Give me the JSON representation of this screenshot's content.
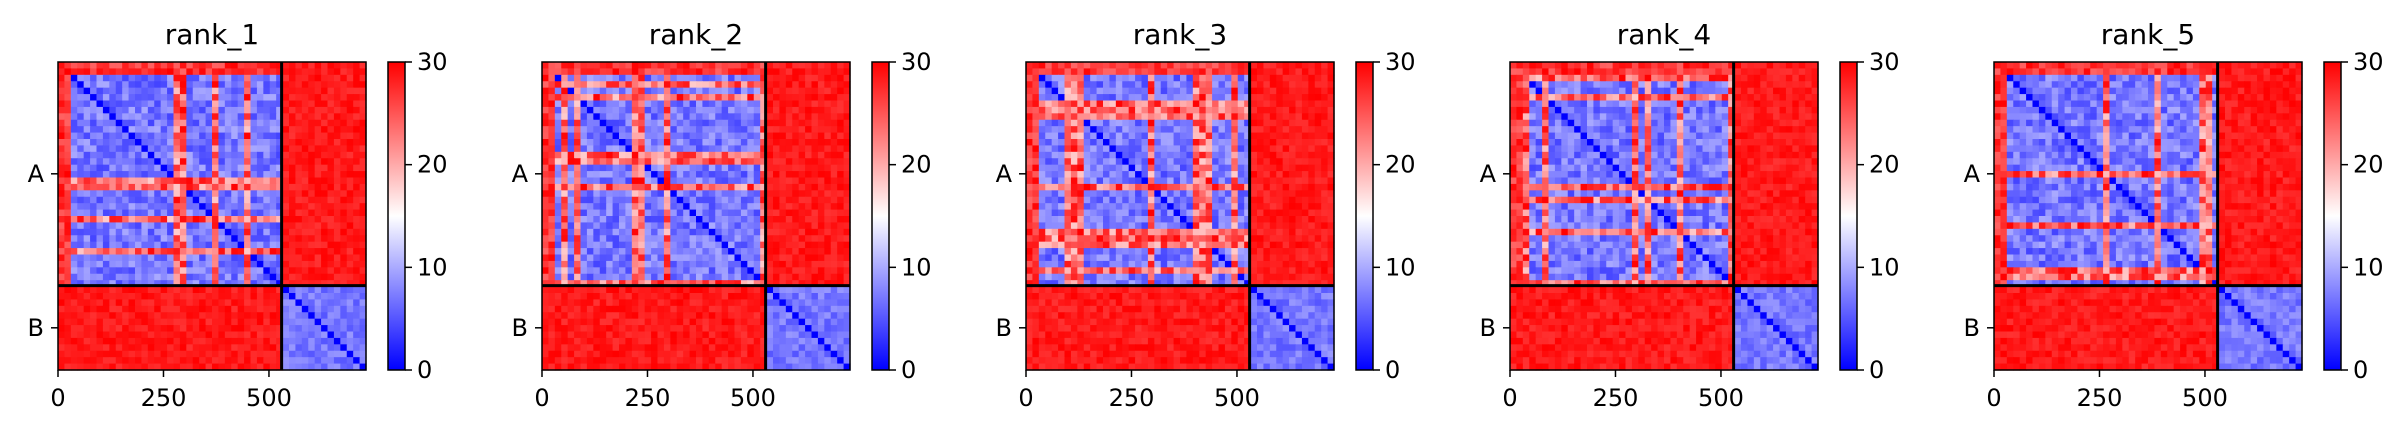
{
  "chart_data": [
    {
      "type": "heatmap",
      "title": "rank_1",
      "chains": [
        "A",
        "B"
      ],
      "chain_lengths": [
        530,
        200
      ],
      "xticks": [
        0,
        250,
        500
      ],
      "colorbar": {
        "min": 0,
        "max": 30,
        "ticks": [
          0,
          10,
          20,
          30
        ],
        "colors": [
          "#0000ff",
          "#ffffff",
          "#ff0000"
        ]
      },
      "inter_chain_value": 30,
      "intra_chain_B_value": 5
    },
    {
      "type": "heatmap",
      "title": "rank_2",
      "chains": [
        "A",
        "B"
      ],
      "chain_lengths": [
        530,
        200
      ],
      "xticks": [
        0,
        250,
        500
      ],
      "colorbar": {
        "min": 0,
        "max": 30,
        "ticks": [
          0,
          10,
          20,
          30
        ],
        "colors": [
          "#0000ff",
          "#ffffff",
          "#ff0000"
        ]
      },
      "inter_chain_value": 30,
      "intra_chain_B_value": 5
    },
    {
      "type": "heatmap",
      "title": "rank_3",
      "chains": [
        "A",
        "B"
      ],
      "chain_lengths": [
        530,
        200
      ],
      "xticks": [
        0,
        250,
        500
      ],
      "colorbar": {
        "min": 0,
        "max": 30,
        "ticks": [
          0,
          10,
          20,
          30
        ],
        "colors": [
          "#0000ff",
          "#ffffff",
          "#ff0000"
        ]
      },
      "inter_chain_value": 30,
      "intra_chain_B_value": 5
    },
    {
      "type": "heatmap",
      "title": "rank_4",
      "chains": [
        "A",
        "B"
      ],
      "chain_lengths": [
        530,
        200
      ],
      "xticks": [
        0,
        250,
        500
      ],
      "colorbar": {
        "min": 0,
        "max": 30,
        "ticks": [
          0,
          10,
          20,
          30
        ],
        "colors": [
          "#0000ff",
          "#ffffff",
          "#ff0000"
        ]
      },
      "inter_chain_value": 30,
      "intra_chain_B_value": 5
    },
    {
      "type": "heatmap",
      "title": "rank_5",
      "chains": [
        "A",
        "B"
      ],
      "chain_lengths": [
        530,
        200
      ],
      "xticks": [
        0,
        250,
        500
      ],
      "colorbar": {
        "min": 0,
        "max": 30,
        "ticks": [
          0,
          10,
          20,
          30
        ],
        "colors": [
          "#0000ff",
          "#ffffff",
          "#ff0000"
        ]
      },
      "inter_chain_value": 30,
      "intra_chain_B_value": 5
    }
  ]
}
